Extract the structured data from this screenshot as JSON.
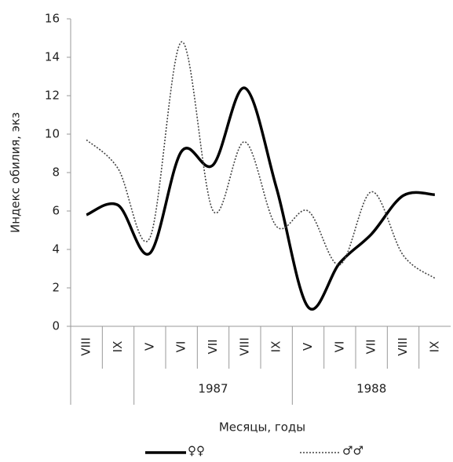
{
  "chart_data": {
    "type": "line",
    "y_label": "Индекс обилия, экз",
    "x_label": "Месяцы, годы",
    "categories": [
      "VIII",
      "IX",
      "V",
      "VI",
      "VII",
      "VIII",
      "IX",
      "V",
      "VI",
      "VII",
      "VIII",
      "IX"
    ],
    "category_groups": [
      null,
      null,
      "1987",
      "1987",
      "1987",
      "1987",
      "1987",
      "1988",
      "1988",
      "1988",
      "1988",
      "1988"
    ],
    "series": [
      {
        "name": "♀♀",
        "color": "#000000",
        "style": "solid",
        "values": [
          5.8,
          6.3,
          3.8,
          9.1,
          8.4,
          12.4,
          7.2,
          1.0,
          3.3,
          4.8,
          6.8,
          6.85
        ]
      },
      {
        "name": "♂♂",
        "color": "#444444",
        "style": "dotted",
        "values": [
          9.7,
          8.2,
          4.6,
          14.8,
          6.0,
          9.6,
          5.2,
          6.0,
          3.2,
          7.0,
          3.7,
          2.5
        ]
      }
    ],
    "ylim": [
      0,
      16
    ],
    "yticks": [
      0,
      2,
      4,
      6,
      8,
      10,
      12,
      14,
      16
    ],
    "smooth": true,
    "legend": "bottom"
  }
}
